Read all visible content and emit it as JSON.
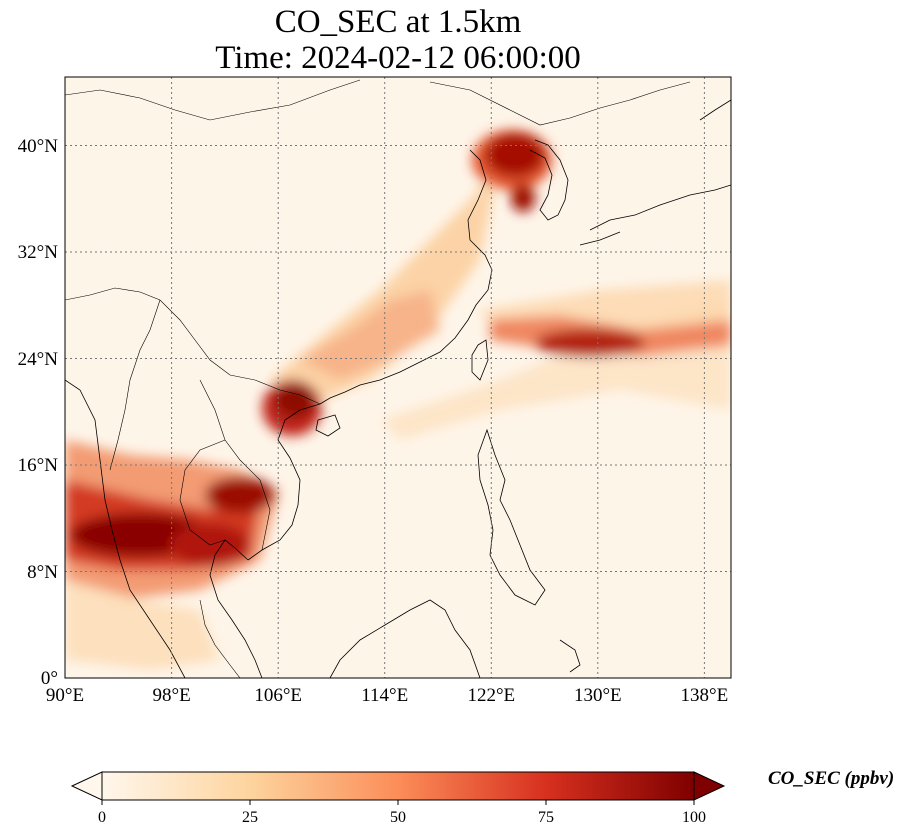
{
  "title": {
    "line1": "CO_SEC at 1.5km",
    "line2": "Time: 2024-02-12 06:00:00"
  },
  "axes": {
    "lat_labels": [
      "0°",
      "8°N",
      "16°N",
      "24°N",
      "32°N",
      "40°N"
    ],
    "lon_labels": [
      "90°E",
      "98°E",
      "106°E",
      "114°E",
      "122°E",
      "130°E",
      "138°E"
    ]
  },
  "colorbar": {
    "label": "CO_SEC (ppbv)",
    "ticks": [
      "0",
      "25",
      "50",
      "75",
      "100"
    ],
    "colormap": [
      "#fff7ec",
      "#fdd49e",
      "#fc8d59",
      "#d7301f",
      "#7f0000"
    ],
    "extend": "both"
  },
  "map": {
    "region_lon": [
      90,
      140
    ],
    "region_lat": [
      0,
      44
    ],
    "gridlines": "dotted",
    "coastline_color": "#000000"
  }
}
